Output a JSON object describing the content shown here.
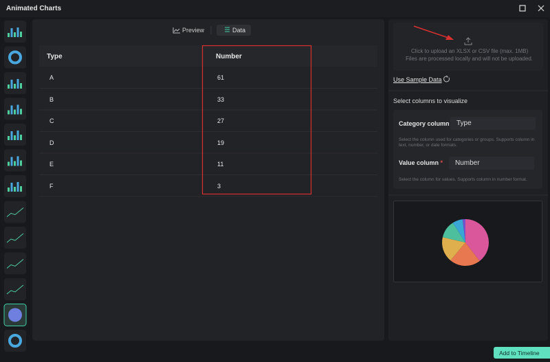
{
  "window": {
    "title": "Animated Charts"
  },
  "tabs": [
    "Preview",
    "Data"
  ],
  "table": {
    "columns": [
      "Type",
      "Number"
    ],
    "rows": [
      [
        "A",
        61
      ],
      [
        "B",
        33
      ],
      [
        "C",
        27
      ],
      [
        "D",
        19
      ],
      [
        "E",
        11
      ],
      [
        "F",
        3
      ]
    ]
  },
  "upload": {
    "text": "Click to upload an XLSX or CSV file (max. 1MB)",
    "note": "Files are processed locally and will not be uploaded."
  },
  "sample_link": "Use Sample Data",
  "columns_section": {
    "title": "Select columns to visualize",
    "category": {
      "label": "Category column",
      "required": "*",
      "value": "Type",
      "help": "Select the column used for categories or groups. Supports column in text, number, or date formats."
    },
    "value": {
      "label": "Value column",
      "required": "*",
      "value": "Number",
      "help": "Select the column for values. Supports column in number format."
    }
  },
  "preview": {
    "colors": [
      "#d9579a",
      "#e8784f",
      "#dfae4d",
      "#4dbf9c",
      "#3aa6d6",
      "#7452cc"
    ]
  },
  "button": "Add to Timeline"
}
